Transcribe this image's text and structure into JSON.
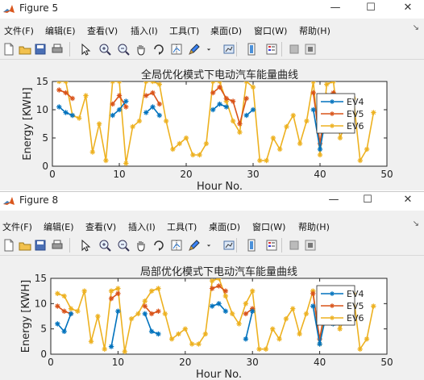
{
  "windows": [
    {
      "title": "Figure 5",
      "controls": {
        "minimize": "—",
        "maximize": "☐",
        "close": "✕"
      },
      "menu": [
        "文件(F)",
        "编辑(E)",
        "查看(V)",
        "插入(I)",
        "工具(T)",
        "桌面(D)",
        "窗口(W)",
        "帮助(H)"
      ],
      "menu_extra": "↘"
    },
    {
      "title": "Figure 8",
      "controls": {
        "minimize": "—",
        "maximize": "☐",
        "close": "✕"
      },
      "menu": [
        "文件(F)",
        "编辑(E)",
        "查看(V)",
        "插入(I)",
        "工具(T)",
        "桌面(D)",
        "窗口(W)",
        "帮助(H)"
      ],
      "menu_extra": "↘"
    }
  ],
  "toolbar_icons": [
    "new-figure-icon",
    "open-file-icon",
    "save-icon",
    "print-icon",
    "pointer-icon",
    "zoom-in-icon",
    "zoom-out-icon",
    "pan-hand-icon",
    "rotate-3d-icon",
    "data-cursor-icon",
    "brush-icon",
    "brush-dropdown-icon",
    "link-plot-icon",
    "colorbar-icon",
    "legend-icon",
    "hide-plot-tools-icon",
    "show-plot-tools-icon"
  ],
  "colors": {
    "ev4": "#0072bd",
    "ev5": "#d95319",
    "ev6": "#edb120"
  },
  "chart_data": [
    {
      "type": "line",
      "title": "全局优化模式下电动汽车能量曲线",
      "xlabel": "Hour No.",
      "ylabel": "Energy [KWH]",
      "xlim": [
        0,
        50
      ],
      "ylim": [
        0,
        15
      ],
      "xticks": [
        "0",
        "10",
        "20",
        "30",
        "40",
        "50"
      ],
      "yticks": [
        "0",
        "5",
        "10",
        "15"
      ],
      "legend_position": "right",
      "series": [
        {
          "name": "EV4",
          "x": [
            1,
            2,
            3,
            9,
            10,
            11,
            14,
            15,
            16,
            24,
            25,
            26,
            29,
            30,
            39,
            40,
            41,
            42
          ],
          "y": [
            10.5,
            9.5,
            9,
            9,
            10,
            11.5,
            9.5,
            10.5,
            9,
            10,
            11,
            10.5,
            9,
            10,
            10,
            3,
            9.5,
            10
          ],
          "breaks": [
            3,
            6,
            9,
            12,
            14
          ]
        },
        {
          "name": "EV5",
          "x": [
            1,
            2,
            3,
            9,
            10,
            11,
            14,
            15,
            16,
            24,
            25,
            26,
            27,
            28,
            29,
            39,
            40,
            41,
            42
          ],
          "y": [
            13.5,
            13,
            12,
            11,
            12.5,
            10.5,
            12.5,
            13,
            11,
            13,
            14,
            12,
            11.5,
            7.5,
            12,
            13,
            4,
            12.5,
            13
          ],
          "breaks": [
            3,
            6,
            9,
            15
          ]
        },
        {
          "name": "EV6",
          "x": [
            1,
            2,
            3,
            4,
            5,
            6,
            7,
            8,
            9,
            10,
            11,
            12,
            13,
            14,
            15,
            16,
            17,
            18,
            19,
            20,
            21,
            22,
            23,
            24,
            25,
            26,
            27,
            28,
            29,
            30,
            31,
            32,
            33,
            34,
            35,
            36,
            37,
            38,
            39,
            40,
            41,
            42,
            43,
            44,
            45,
            46,
            47,
            48
          ],
          "y": [
            15,
            15,
            9,
            8.5,
            12.5,
            2.5,
            7.5,
            1,
            15,
            15,
            0.5,
            7,
            8,
            15,
            15,
            14.5,
            8,
            3,
            4,
            5,
            2,
            2,
            4,
            15,
            15,
            11.5,
            8,
            6,
            15,
            14,
            1,
            1,
            5,
            3,
            7,
            9,
            4,
            8,
            15,
            2,
            14.5,
            15,
            5,
            8,
            12,
            1,
            3,
            9.5
          ],
          "breaks": []
        }
      ]
    },
    {
      "type": "line",
      "title": "局部优化模式下电动汽车能量曲线",
      "xlabel": "Hour No.",
      "ylabel": "Energy [KWH]",
      "xlim": [
        0,
        50
      ],
      "ylim": [
        0,
        15
      ],
      "xticks": [
        "0",
        "10",
        "20",
        "30",
        "40",
        "50"
      ],
      "yticks": [
        "0",
        "5",
        "10",
        "15"
      ],
      "legend_position": "right",
      "series": [
        {
          "name": "EV4",
          "x": [
            1,
            2,
            3,
            9,
            10,
            14,
            15,
            16,
            24,
            25,
            26,
            29,
            30,
            39,
            40,
            41,
            42
          ],
          "y": [
            6,
            4.5,
            8,
            1.5,
            8.5,
            8,
            4.5,
            4,
            9.5,
            10,
            8.5,
            3,
            8.5,
            9.5,
            2,
            8,
            6
          ],
          "breaks": [
            3,
            5,
            8,
            11,
            13
          ]
        },
        {
          "name": "EV5",
          "x": [
            1,
            2,
            3,
            9,
            10,
            14,
            15,
            16,
            24,
            25,
            26,
            29,
            30,
            39,
            40,
            41,
            42
          ],
          "y": [
            9.5,
            8.5,
            8,
            11,
            12,
            9.5,
            8,
            8.5,
            13,
            13.5,
            12.5,
            8,
            9,
            12,
            3,
            10.5,
            9
          ],
          "breaks": [
            3,
            5,
            8,
            11,
            13
          ]
        },
        {
          "name": "EV6",
          "x": [
            1,
            2,
            3,
            4,
            5,
            6,
            7,
            8,
            9,
            10,
            11,
            12,
            13,
            14,
            15,
            16,
            17,
            18,
            19,
            20,
            21,
            22,
            23,
            24,
            25,
            26,
            27,
            28,
            29,
            30,
            31,
            32,
            33,
            34,
            35,
            36,
            37,
            38,
            39,
            40,
            41,
            42,
            43,
            44,
            45,
            46,
            47,
            48
          ],
          "y": [
            12,
            11.5,
            9,
            8.5,
            12.5,
            2.5,
            7.5,
            1,
            12.5,
            13,
            0.5,
            7,
            8,
            10.5,
            12.5,
            13,
            8,
            3,
            4,
            5,
            2,
            2,
            4,
            14.5,
            15,
            11.5,
            8,
            6,
            10,
            12.5,
            1,
            1,
            5,
            3,
            7,
            9,
            4,
            8,
            12.5,
            2,
            10,
            12,
            5,
            8,
            12,
            1,
            3,
            9.5
          ],
          "breaks": []
        }
      ]
    }
  ]
}
